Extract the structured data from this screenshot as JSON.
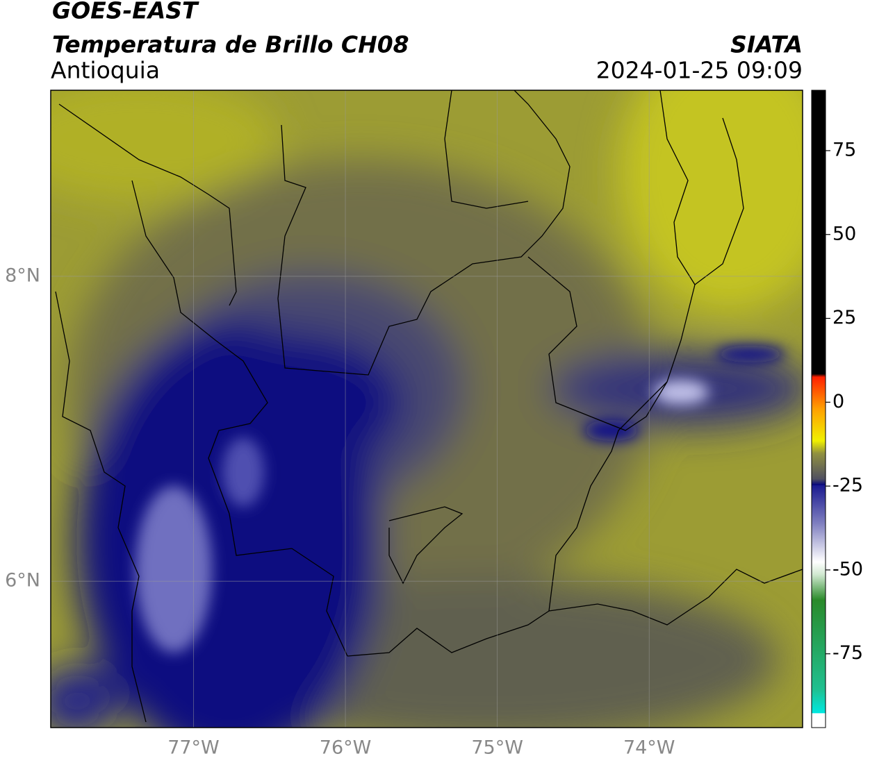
{
  "header": {
    "title": "GOES-EAST",
    "subtitle": "Temperatura de Brillo CH08",
    "region": "Antioquia",
    "source": "SIATA",
    "timestamp": "2024-01-25 09:09"
  },
  "map": {
    "lon_range": [
      -77.94,
      -72.99
    ],
    "lat_range": [
      5.04,
      9.22
    ],
    "lon_ticks": [
      {
        "value": -77,
        "label": "77°W"
      },
      {
        "value": -76,
        "label": "76°W"
      },
      {
        "value": -75,
        "label": "75°W"
      },
      {
        "value": -74,
        "label": "74°W"
      }
    ],
    "lat_ticks": [
      {
        "value": 6,
        "label": "6°N"
      },
      {
        "value": 8,
        "label": "8°N"
      }
    ]
  },
  "colorbar": {
    "range": [
      -97,
      93
    ],
    "ticks": [
      -75,
      -50,
      -25,
      0,
      25,
      50,
      75
    ]
  }
}
